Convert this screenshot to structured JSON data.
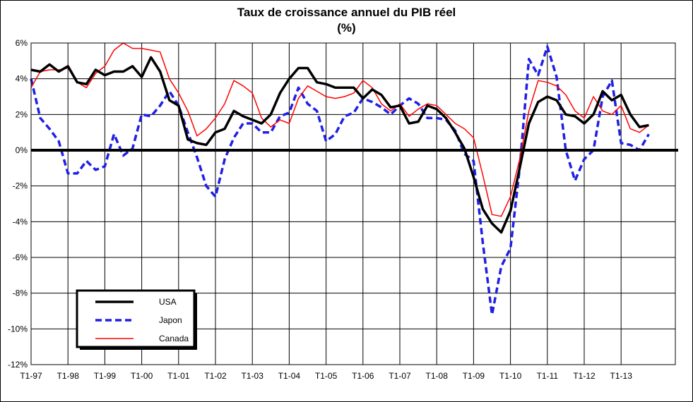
{
  "chart_data": {
    "type": "line",
    "title": "Taux de croissance annuel du PIB réel",
    "subtitle": "(%)",
    "ylim": [
      -12,
      6
    ],
    "yticks": [
      6,
      4,
      2,
      0,
      -2,
      -4,
      -6,
      -8,
      -10,
      -12
    ],
    "ytick_labels": [
      "6%",
      "4%",
      "2%",
      "0%",
      "-2%",
      "-4%",
      "-6%",
      "-8%",
      "-10%",
      "-12%"
    ],
    "xtick_labels": [
      "T1-97",
      "T1-98",
      "T1-99",
      "T1-00",
      "T1-01",
      "T1-02",
      "T1-03",
      "T1-04",
      "T1-05",
      "T1-06",
      "T1-07",
      "T1-08",
      "T1-09",
      "T1-10",
      "T1-11",
      "T1-12",
      "T1-13"
    ],
    "x_start": "T1-97",
    "x_frequency": "quarterly",
    "grid": true,
    "legend_position": "bottom-left",
    "series": [
      {
        "name": "USA",
        "color": "#000000",
        "style": "solid-thick",
        "values": [
          4.5,
          4.4,
          4.8,
          4.4,
          4.7,
          3.8,
          3.7,
          4.5,
          4.2,
          4.4,
          4.4,
          4.7,
          4.1,
          5.2,
          4.4,
          2.8,
          2.5,
          0.6,
          0.4,
          0.3,
          1.0,
          1.2,
          2.2,
          1.9,
          1.7,
          1.5,
          2.0,
          3.2,
          4.0,
          4.6,
          4.6,
          3.8,
          3.7,
          3.5,
          3.5,
          3.5,
          2.9,
          3.4,
          3.1,
          2.4,
          2.5,
          1.5,
          1.6,
          2.5,
          2.3,
          1.8,
          1.0,
          0.1,
          -1.5,
          -3.3,
          -4.1,
          -4.6,
          -3.4,
          -1.0,
          1.5,
          2.7,
          3.0,
          2.8,
          2.0,
          1.9,
          1.5,
          2.0,
          3.3,
          2.8,
          3.1,
          2.0,
          1.3,
          1.4
        ]
      },
      {
        "name": "Japon",
        "color": "#1f1fe6",
        "style": "dashed",
        "values": [
          4.0,
          1.8,
          1.2,
          0.5,
          -1.3,
          -1.3,
          -0.6,
          -1.1,
          -0.9,
          0.9,
          -0.3,
          0.1,
          2.0,
          1.9,
          2.5,
          3.3,
          2.5,
          1.0,
          -0.4,
          -2.0,
          -2.6,
          -0.5,
          0.7,
          1.5,
          1.5,
          1.0,
          1.0,
          1.9,
          2.1,
          3.5,
          2.6,
          2.2,
          0.5,
          0.9,
          1.9,
          2.1,
          2.9,
          2.7,
          2.4,
          2.0,
          2.5,
          2.9,
          2.6,
          1.8,
          1.8,
          1.7,
          1.1,
          -0.2,
          -0.6,
          -5.2,
          -9.2,
          -6.5,
          -5.5,
          -1.0,
          5.1,
          4.2,
          5.8,
          4.1,
          0.0,
          -1.7,
          -0.5,
          0.0,
          3.0,
          3.9,
          0.4,
          0.3,
          0.0,
          0.9
        ]
      },
      {
        "name": "Canada",
        "color": "#ff0000",
        "style": "solid-thin",
        "values": [
          3.5,
          4.4,
          4.5,
          4.5,
          4.6,
          3.8,
          3.5,
          4.3,
          4.7,
          5.6,
          6.0,
          5.7,
          5.7,
          5.6,
          5.5,
          4.0,
          3.2,
          2.2,
          0.8,
          1.2,
          1.8,
          2.6,
          3.9,
          3.6,
          3.2,
          1.8,
          1.3,
          1.7,
          1.5,
          2.9,
          3.6,
          3.3,
          3.0,
          2.9,
          3.0,
          3.2,
          3.9,
          3.5,
          2.6,
          2.2,
          2.6,
          1.9,
          2.3,
          2.6,
          2.5,
          2.0,
          1.5,
          1.2,
          0.7,
          -1.4,
          -3.6,
          -3.7,
          -2.6,
          -0.5,
          2.2,
          3.9,
          3.8,
          3.6,
          3.1,
          2.2,
          1.8,
          3.0,
          2.2,
          2.0,
          2.5,
          1.2,
          1.0,
          1.4
        ]
      }
    ]
  }
}
